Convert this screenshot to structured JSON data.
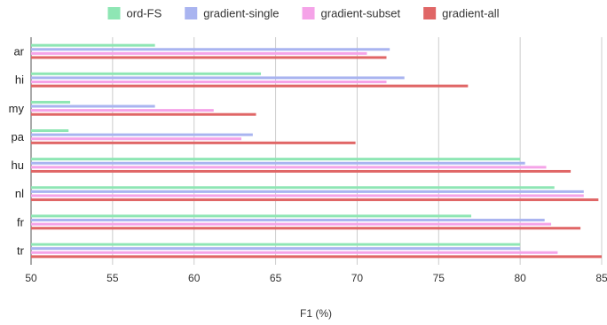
{
  "chart_data": {
    "type": "bar",
    "orientation": "horizontal",
    "categories": [
      "ar",
      "hi",
      "my",
      "pa",
      "hu",
      "nl",
      "fr",
      "tr"
    ],
    "series": [
      {
        "name": "ord-FS",
        "color": "#8ee6b4",
        "values": [
          57.6,
          64.1,
          52.4,
          52.3,
          80.0,
          82.1,
          77.0,
          80.0
        ]
      },
      {
        "name": "gradient-single",
        "color": "#a9b4f0",
        "values": [
          72.0,
          72.9,
          57.6,
          63.6,
          80.3,
          83.9,
          81.5,
          80.0
        ]
      },
      {
        "name": "gradient-subset",
        "color": "#f5a3e8",
        "values": [
          70.6,
          71.8,
          61.2,
          62.9,
          81.6,
          83.9,
          81.9,
          82.3
        ]
      },
      {
        "name": "gradient-all",
        "color": "#e06666",
        "values": [
          71.8,
          76.8,
          63.8,
          69.9,
          83.1,
          84.8,
          83.7,
          85.0
        ]
      }
    ],
    "xlabel": "F1 (%)",
    "xlim": [
      50,
      85
    ],
    "xticks": [
      "50",
      "55",
      "60",
      "65",
      "70",
      "75",
      "80",
      "85"
    ],
    "grid": "vertical",
    "legend_position": "top"
  }
}
